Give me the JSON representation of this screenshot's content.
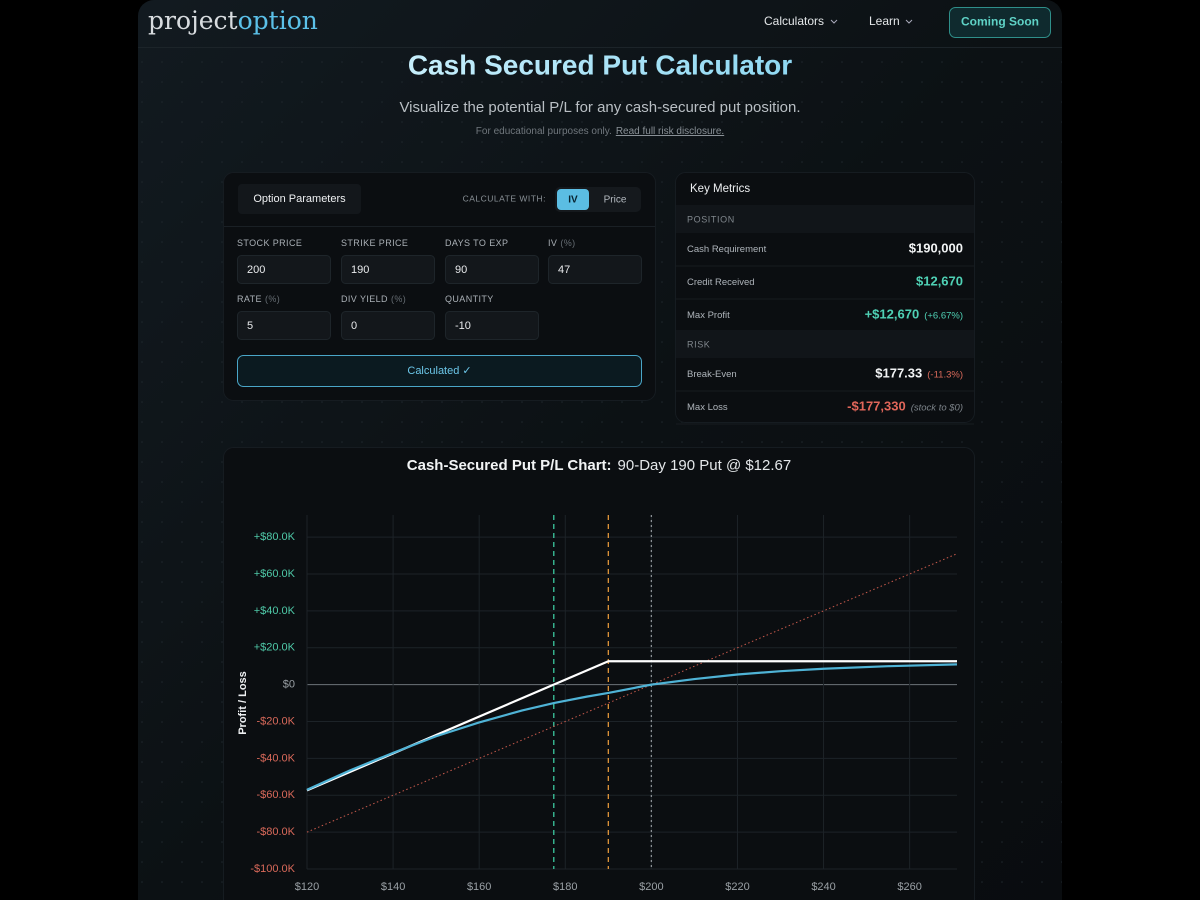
{
  "nav": {
    "logo": [
      "project",
      "option"
    ],
    "menu": [
      "Calculators",
      "Learn"
    ],
    "button": "Coming Soon"
  },
  "header": {
    "title": "Cash Secured Put Calculator",
    "subtitle": "Visualize the potential P/L for any cash-secured put position.",
    "note": "For educational purposes only.",
    "link": "Read full risk disclosure."
  },
  "parameters": {
    "title": "Option Parameters",
    "calculate_with": "CALCULATE WITH:",
    "modes": [
      "IV",
      "Price"
    ],
    "fields": [
      {
        "label": "STOCK PRICE",
        "value": "200"
      },
      {
        "label": "STRIKE PRICE",
        "value": "190"
      },
      {
        "label": "DAYS TO EXP",
        "value": "90"
      },
      {
        "label": "IV",
        "unit": "(%)",
        "value": "47"
      },
      {
        "label": "RATE",
        "unit": "(%)",
        "value": "5"
      },
      {
        "label": "DIV YIELD",
        "unit": "(%)",
        "value": "0"
      },
      {
        "label": "QUANTITY",
        "value": "-10"
      }
    ],
    "button": "Calculated ✓"
  },
  "metrics": {
    "title": "Key Metrics",
    "sections": [
      {
        "title": "POSITION",
        "rows": [
          {
            "label": "Cash Requirement",
            "value": "$190,000",
            "color": "#f2f4f5"
          },
          {
            "label": "Credit Received",
            "value": "$12,670",
            "color": "#4fd1b5"
          },
          {
            "label": "Max Profit",
            "value": "+$12,670",
            "color": "#4fd1b5",
            "extra": "(+6.67%)",
            "extra_color": "#4fd1b5"
          }
        ]
      },
      {
        "title": "RISK",
        "rows": [
          {
            "label": "Break-Even",
            "value": "$177.33",
            "color": "#f2f4f5",
            "extra": "(-11.3%)",
            "extra_color": "#d9695a"
          },
          {
            "label": "Max Loss",
            "value": "-$177,330",
            "color": "#e0665a",
            "extra": "(stock to $0)",
            "extra_color": "#7d848a"
          }
        ]
      }
    ]
  },
  "chart_data": {
    "type": "line",
    "title": "Cash-Secured Put P/L Chart:",
    "subtitle": "90-Day 190 Put @ $12.67",
    "y_label": "Profit / Loss",
    "xlim": [
      120,
      271
    ],
    "ylim": [
      -100000,
      92000
    ],
    "xticks": [
      {
        "value": 120,
        "label": "$120"
      },
      {
        "value": 140,
        "label": "$140"
      },
      {
        "value": 160,
        "label": "$160"
      },
      {
        "value": 180,
        "label": "$180"
      },
      {
        "value": 200,
        "label": "$200"
      },
      {
        "value": 220,
        "label": "$220"
      },
      {
        "value": 240,
        "label": "$240"
      },
      {
        "value": 260,
        "label": "$260"
      }
    ],
    "yticks": [
      {
        "value": -100000,
        "label": "-$100.0K"
      },
      {
        "value": -80000,
        "label": "-$80.0K"
      },
      {
        "value": -60000,
        "label": "-$60.0K"
      },
      {
        "value": -40000,
        "label": "-$40.0K"
      },
      {
        "value": -20000,
        "label": "-$20.0K"
      },
      {
        "value": 0,
        "label": "$0"
      },
      {
        "value": 20000,
        "label": "+$20.0K"
      },
      {
        "value": 40000,
        "label": "+$40.0K"
      },
      {
        "value": 60000,
        "label": "+$60.0K"
      },
      {
        "value": 80000,
        "label": "+$80.0K"
      }
    ],
    "grid": true,
    "series": [
      {
        "color": "#4fb3d6",
        "x": [
          120,
          130,
          140,
          150,
          160,
          170,
          177.33,
          185,
          190,
          200,
          210,
          220,
          230,
          240,
          255,
          271
        ],
        "values": [
          -57000,
          -46500,
          -37000,
          -28000,
          -20500,
          -14000,
          -10000,
          -6500,
          -4500,
          0,
          3000,
          5500,
          7300,
          8600,
          10000,
          11000
        ]
      },
      {
        "color": "#ffffff",
        "x": [
          120,
          190,
          271
        ],
        "values": [
          -57330,
          12670,
          12670
        ]
      },
      {
        "color": "#c85a4c",
        "style": "dotted",
        "x": [
          120,
          271
        ],
        "values": [
          -80000,
          71000
        ]
      }
    ],
    "markers": [
      {
        "x": 177.33,
        "color": "#3cc9a0"
      },
      {
        "x": 190,
        "color": "#e0953a"
      },
      {
        "x": 200,
        "color": "#8a8f94"
      }
    ]
  }
}
